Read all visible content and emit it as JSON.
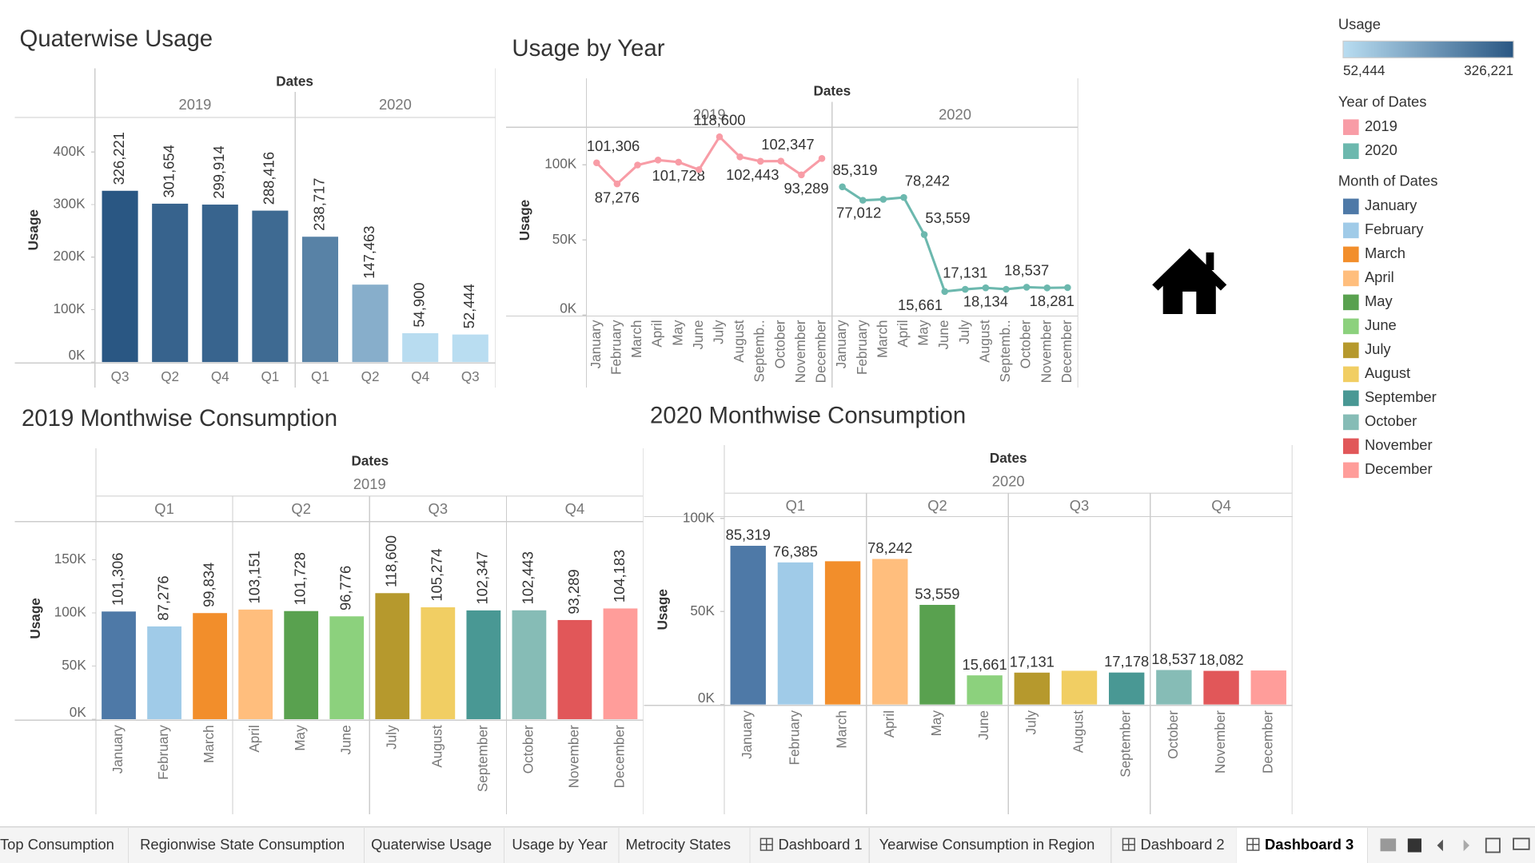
{
  "chart_data": [
    {
      "type": "bar",
      "title": "Quaterwise Usage",
      "header": "Dates",
      "y_label": "Usage",
      "color_by": "usage",
      "ylim": [
        0,
        466000
      ],
      "yticks": [
        {
          "value": 0,
          "label": "0K"
        },
        {
          "value": 100000,
          "label": "100K"
        },
        {
          "value": 200000,
          "label": "200K"
        },
        {
          "value": 300000,
          "label": "300K"
        },
        {
          "value": 400000,
          "label": "400K"
        }
      ],
      "panels": [
        {
          "label": "2019",
          "categories": [
            "Q3",
            "Q2",
            "Q4",
            "Q1"
          ],
          "values": [
            326221,
            301654,
            299914,
            288416
          ],
          "value_labels": [
            "326,221",
            "301,654",
            "299,914",
            "288,416"
          ]
        },
        {
          "label": "2020",
          "categories": [
            "Q1",
            "Q2",
            "Q4",
            "Q3"
          ],
          "values": [
            238717,
            147463,
            54900,
            52444
          ],
          "value_labels": [
            "238,717",
            "147,463",
            "54,900",
            "52,444"
          ]
        }
      ]
    },
    {
      "type": "line",
      "title": "Usage by Year",
      "header": "Dates",
      "y_label": "Usage",
      "color_by": "year",
      "ylim": [
        0,
        125000
      ],
      "yticks": [
        {
          "value": 0,
          "label": "0K"
        },
        {
          "value": 50000,
          "label": "50K"
        },
        {
          "value": 100000,
          "label": "100K"
        }
      ],
      "panels": [
        {
          "label": "2019",
          "categories": [
            "January",
            "February",
            "March",
            "April",
            "May",
            "June",
            "July",
            "August",
            "Septemb..",
            "October",
            "November",
            "December"
          ],
          "values": [
            101306,
            87276,
            99834,
            103151,
            101728,
            96776,
            118600,
            105274,
            102347,
            102443,
            93289,
            104183
          ],
          "value_labels": [
            "101,306",
            "87,276",
            null,
            null,
            "101,728",
            null,
            "118,600",
            null,
            "102,347",
            "102,443",
            "93,289",
            null
          ]
        },
        {
          "label": "2020",
          "categories": [
            "January",
            "February",
            "March",
            "April",
            "May",
            "June",
            "July",
            "August",
            "Septemb..",
            "October",
            "November",
            "December"
          ],
          "values": [
            85319,
            76385,
            77012,
            78242,
            53559,
            15661,
            17131,
            18134,
            17178,
            18537,
            18082,
            18281
          ],
          "value_labels": [
            "85,319",
            null,
            "77,012",
            "78,242",
            "53,559",
            "15,661",
            "17,131",
            "18,134",
            null,
            "18,537",
            null,
            "18,281"
          ]
        }
      ]
    },
    {
      "type": "bar",
      "title": "2019 Monthwise Consumption",
      "header": "Dates",
      "year": "2019",
      "y_label": "Usage",
      "color_by": "month",
      "ylim": [
        0,
        186000
      ],
      "yticks": [
        {
          "value": 0,
          "label": "0K"
        },
        {
          "value": 50000,
          "label": "50K"
        },
        {
          "value": 100000,
          "label": "100K"
        },
        {
          "value": 150000,
          "label": "150K"
        }
      ],
      "panels": [
        {
          "label": "Q1",
          "categories": [
            "January",
            "February",
            "March"
          ],
          "values": [
            101306,
            87276,
            99834
          ],
          "value_labels": [
            "101,306",
            "87,276",
            "99,834"
          ]
        },
        {
          "label": "Q2",
          "categories": [
            "April",
            "May",
            "June"
          ],
          "values": [
            103151,
            101728,
            96776
          ],
          "value_labels": [
            "103,151",
            "101,728",
            "96,776"
          ]
        },
        {
          "label": "Q3",
          "categories": [
            "July",
            "August",
            "September"
          ],
          "values": [
            118600,
            105274,
            102347
          ],
          "value_labels": [
            "118,600",
            "105,274",
            "102,347"
          ]
        },
        {
          "label": "Q4",
          "categories": [
            "October",
            "November",
            "December"
          ],
          "values": [
            102443,
            93289,
            104183
          ],
          "value_labels": [
            "102,443",
            "93,289",
            "104,183"
          ]
        }
      ]
    },
    {
      "type": "bar",
      "title": "2020 Monthwise Consumption",
      "header": "Dates",
      "year": "2020",
      "y_label": "Usage",
      "color_by": "month",
      "ylim": [
        0,
        101000
      ],
      "yticks": [
        {
          "value": 0,
          "label": "0K"
        },
        {
          "value": 50000,
          "label": "50K"
        },
        {
          "value": 100000,
          "label": "100K"
        }
      ],
      "panels": [
        {
          "label": "Q1",
          "categories": [
            "January",
            "February",
            "March"
          ],
          "values": [
            85319,
            76385,
            77012
          ],
          "value_labels": [
            "85,319",
            "76,385",
            null
          ]
        },
        {
          "label": "Q2",
          "categories": [
            "April",
            "May",
            "June"
          ],
          "values": [
            78242,
            53559,
            15661
          ],
          "value_labels": [
            "78,242",
            "53,559",
            "15,661"
          ]
        },
        {
          "label": "Q3",
          "categories": [
            "July",
            "August",
            "September"
          ],
          "values": [
            17131,
            18134,
            17178
          ],
          "value_labels": [
            "17,131",
            null,
            "17,178"
          ]
        },
        {
          "label": "Q4",
          "categories": [
            "October",
            "November",
            "December"
          ],
          "values": [
            18537,
            18082,
            18281
          ],
          "value_labels": [
            "18,537",
            "18,082",
            null
          ]
        }
      ]
    }
  ],
  "legends": {
    "usage": {
      "title": "Usage",
      "min": {
        "value": 52444,
        "label": "52,444"
      },
      "max": {
        "value": 326221,
        "label": "326,221"
      },
      "colors": [
        "#b9ddf1",
        "#2a5783"
      ]
    },
    "year": {
      "title": "Year of Dates",
      "items": [
        {
          "label": "2019",
          "color": "#f89ca6"
        },
        {
          "label": "2020",
          "color": "#6cb8ae"
        }
      ]
    },
    "month": {
      "title": "Month of Dates",
      "items": [
        {
          "label": "January",
          "color": "#4e79a7"
        },
        {
          "label": "February",
          "color": "#a0cbe8"
        },
        {
          "label": "March",
          "color": "#f28e2b"
        },
        {
          "label": "April",
          "color": "#ffbe7d"
        },
        {
          "label": "May",
          "color": "#59a14f"
        },
        {
          "label": "June",
          "color": "#8cd17d"
        },
        {
          "label": "July",
          "color": "#b6992d"
        },
        {
          "label": "August",
          "color": "#f1ce63"
        },
        {
          "label": "September",
          "color": "#499894"
        },
        {
          "label": "October",
          "color": "#86bcb6"
        },
        {
          "label": "November",
          "color": "#e15759"
        },
        {
          "label": "December",
          "color": "#ff9d9a"
        }
      ]
    }
  },
  "tabs": [
    {
      "label": "Top Consumption"
    },
    {
      "label": "Regionwise State Consumption"
    },
    {
      "label": "Quaterwise Usage"
    },
    {
      "label": "Usage by Year"
    },
    {
      "label": "Metrocity States"
    },
    {
      "label": "Dashboard 1",
      "dashboard": true
    },
    {
      "label": "Yearwise Consumption in Region"
    },
    {
      "label": "Dashboard 2",
      "dashboard": true
    },
    {
      "label": "Dashboard 3",
      "dashboard": true
    }
  ],
  "active_tab": 8
}
